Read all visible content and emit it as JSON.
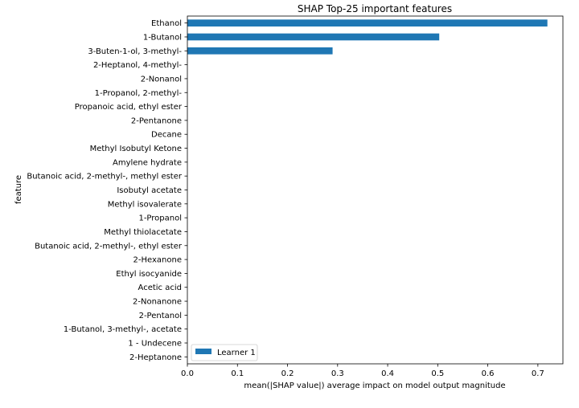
{
  "chart_data": {
    "type": "bar",
    "orientation": "horizontal",
    "title": "SHAP Top-25 important features",
    "xlabel": "mean(|SHAP value|) average impact on model output magnitude",
    "ylabel": "feature",
    "xlim": [
      0,
      0.75
    ],
    "xticks": [
      0,
      0.1,
      0.2,
      0.3,
      0.4,
      0.5,
      0.6,
      0.7
    ],
    "xtick_labels": [
      "0.0",
      "0.1",
      "0.2",
      "0.3",
      "0.4",
      "0.5",
      "0.6",
      "0.7"
    ],
    "grid": false,
    "legend_position": "lower-left",
    "categories": [
      "Ethanol",
      "1-Butanol",
      "3-Buten-1-ol, 3-methyl-",
      "2-Heptanol, 4-methyl-",
      "2-Nonanol",
      "1-Propanol, 2-methyl-",
      "Propanoic acid, ethyl ester",
      "2-Pentanone",
      "Decane",
      "Methyl Isobutyl Ketone",
      "Amylene hydrate",
      "Butanoic acid, 2-methyl-, methyl ester",
      "Isobutyl acetate",
      "Methyl isovalerate",
      "1-Propanol",
      "Methyl thiolacetate",
      "Butanoic acid, 2-methyl-, ethyl ester",
      "2-Hexanone",
      "Ethyl isocyanide",
      "Acetic acid",
      "2-Nonanone ",
      "2-Pentanol",
      "1-Butanol, 3-methyl-, acetate",
      "1 - Undecene",
      "2-Heptanone"
    ],
    "series": [
      {
        "name": "Learner 1",
        "color": "#1f77b4",
        "values": [
          0.719,
          0.503,
          0.29,
          0,
          0,
          0,
          0,
          0,
          0,
          0,
          0,
          0,
          0,
          0,
          0,
          0,
          0,
          0,
          0,
          0,
          0,
          0,
          0,
          0,
          0
        ]
      }
    ]
  }
}
